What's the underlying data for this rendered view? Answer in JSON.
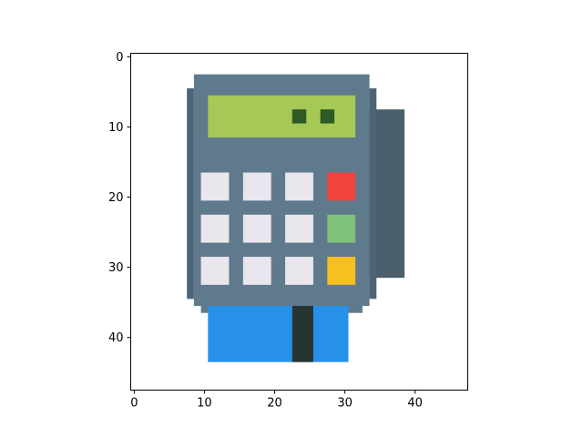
{
  "chart_data": {
    "type": "heatmap",
    "description_image": "pixel-art card payment terminal rendered with imshow",
    "x_ticks": [
      0,
      10,
      20,
      30,
      40
    ],
    "y_ticks": [
      0,
      10,
      20,
      30,
      40
    ],
    "xlim": [
      -0.5,
      47.5
    ],
    "ylim": [
      47.5,
      -0.5
    ],
    "grid": false,
    "palette": {
      "background": "#ffffff",
      "body": "#5f7a8c",
      "body_dark": "#4e6474",
      "side_module": "#4a5e6c",
      "screen": "#a6c856",
      "screen_pixel": "#2e5a24",
      "key": "#e9e6ee",
      "key_cancel": "#f2453f",
      "key_enter": "#7ec27c",
      "key_clear": "#f5c020",
      "card": "#2791ea",
      "card_stripe": "#273430"
    },
    "regions": [
      {
        "name": "side-module",
        "color": "side_module",
        "x0": 34,
        "x1": 38,
        "y0": 8,
        "y1": 31
      },
      {
        "name": "body-top",
        "color": "body",
        "x0": 9,
        "x1": 33,
        "y0": 3,
        "y1": 35
      },
      {
        "name": "body-left",
        "color": "body_dark",
        "x0": 8,
        "x1": 8,
        "y0": 5,
        "y1": 34
      },
      {
        "name": "body-right",
        "color": "body_dark",
        "x0": 34,
        "x1": 34,
        "y0": 5,
        "y1": 34
      },
      {
        "name": "body-bottom",
        "color": "body",
        "x0": 10,
        "x1": 32,
        "y0": 35,
        "y1": 36
      },
      {
        "name": "card",
        "color": "card",
        "x0": 11,
        "x1": 30,
        "y0": 36,
        "y1": 43
      },
      {
        "name": "card-stripe",
        "color": "card_stripe",
        "x0": 23,
        "x1": 25,
        "y0": 36,
        "y1": 43
      },
      {
        "name": "screen",
        "color": "screen",
        "x0": 11,
        "x1": 31,
        "y0": 6,
        "y1": 11
      },
      {
        "name": "screen-pixel-1",
        "color": "screen_pixel",
        "x0": 23,
        "x1": 24,
        "y0": 8,
        "y1": 9
      },
      {
        "name": "screen-pixel-2",
        "color": "screen_pixel",
        "x0": 27,
        "x1": 28,
        "y0": 8,
        "y1": 9
      },
      {
        "name": "key-1",
        "color": "key",
        "x0": 10,
        "x1": 13,
        "y0": 17,
        "y1": 20
      },
      {
        "name": "key-2",
        "color": "key",
        "x0": 16,
        "x1": 19,
        "y0": 17,
        "y1": 20
      },
      {
        "name": "key-3",
        "color": "key",
        "x0": 22,
        "x1": 25,
        "y0": 17,
        "y1": 20
      },
      {
        "name": "key-cancel",
        "color": "key_cancel",
        "x0": 28,
        "x1": 31,
        "y0": 17,
        "y1": 20
      },
      {
        "name": "key-4",
        "color": "key",
        "x0": 10,
        "x1": 13,
        "y0": 23,
        "y1": 26
      },
      {
        "name": "key-5",
        "color": "key",
        "x0": 16,
        "x1": 19,
        "y0": 23,
        "y1": 26
      },
      {
        "name": "key-6",
        "color": "key",
        "x0": 22,
        "x1": 25,
        "y0": 23,
        "y1": 26
      },
      {
        "name": "key-enter",
        "color": "key_enter",
        "x0": 28,
        "x1": 31,
        "y0": 23,
        "y1": 26
      },
      {
        "name": "key-7",
        "color": "key",
        "x0": 10,
        "x1": 13,
        "y0": 29,
        "y1": 32
      },
      {
        "name": "key-8",
        "color": "key",
        "x0": 16,
        "x1": 19,
        "y0": 29,
        "y1": 32
      },
      {
        "name": "key-9",
        "color": "key",
        "x0": 22,
        "x1": 25,
        "y0": 29,
        "y1": 32
      },
      {
        "name": "key-clear",
        "color": "key_clear",
        "x0": 28,
        "x1": 31,
        "y0": 29,
        "y1": 32
      }
    ]
  }
}
